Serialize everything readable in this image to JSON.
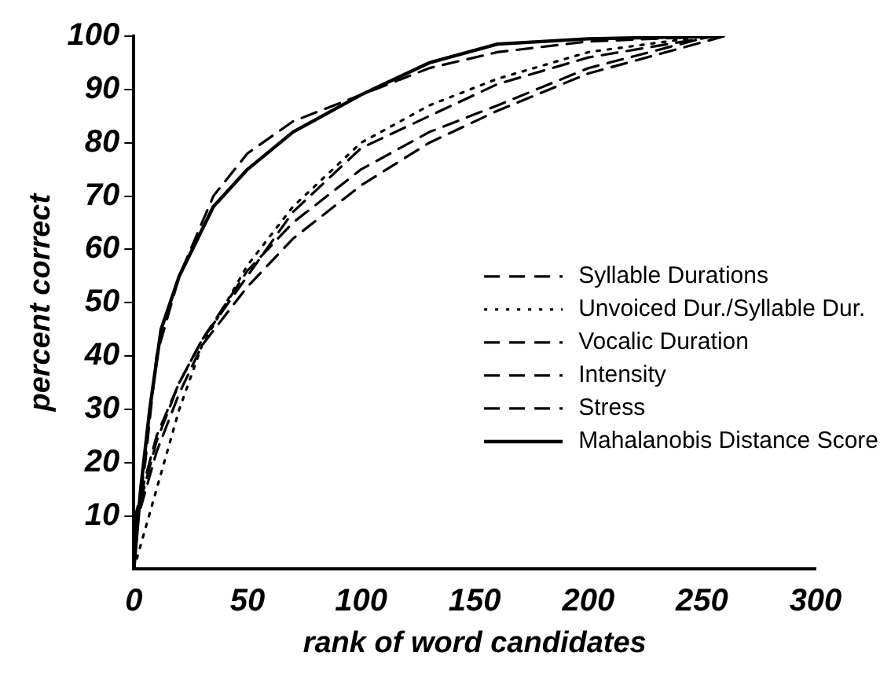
{
  "chart_data": {
    "type": "line",
    "xlabel": "rank of word candidates",
    "ylabel": "percent correct",
    "xlim": [
      0,
      300
    ],
    "xticks": [
      0,
      50,
      100,
      150,
      200,
      250,
      300
    ],
    "ylim": [
      0,
      100
    ],
    "yticks": [
      10,
      20,
      30,
      40,
      50,
      60,
      70,
      80,
      90,
      100
    ],
    "grid": false,
    "legend": "right",
    "marker": "none",
    "series": [
      {
        "name": "Syllable Durations",
        "color": "#000000",
        "line_style": "dashed",
        "x": [
          0,
          5,
          10,
          20,
          35,
          50,
          70,
          100,
          130,
          160,
          200,
          257
        ],
        "values": [
          5,
          20,
          40,
          55,
          70,
          78,
          84,
          89,
          94,
          97,
          99,
          100
        ]
      },
      {
        "name": "Unvoiced Dur./Syllable Dur.",
        "color": "#000000",
        "line_style": "dotted",
        "x": [
          0,
          10,
          20,
          30,
          50,
          70,
          100,
          130,
          160,
          200,
          252
        ],
        "values": [
          0,
          15,
          30,
          42,
          57,
          68,
          80,
          87,
          92,
          97,
          100
        ]
      },
      {
        "name": "Vocalic Duration",
        "color": "#000000",
        "line_style": "dashed",
        "x": [
          0,
          10,
          20,
          30,
          50,
          70,
          100,
          130,
          160,
          200,
          256
        ],
        "values": [
          9,
          25,
          35,
          43,
          55,
          67,
          79,
          85,
          91,
          96,
          100
        ]
      },
      {
        "name": "Intensity",
        "color": "#000000",
        "line_style": "dashed",
        "x": [
          0,
          10,
          20,
          30,
          50,
          70,
          100,
          130,
          160,
          200,
          260
        ],
        "values": [
          7,
          22,
          33,
          42,
          53,
          62,
          72,
          80,
          86,
          93,
          100
        ]
      },
      {
        "name": "Stress",
        "color": "#000000",
        "line_style": "dashed",
        "x": [
          0,
          10,
          20,
          30,
          50,
          70,
          100,
          130,
          160,
          200,
          254
        ],
        "values": [
          8,
          24,
          35,
          43,
          56,
          65,
          75,
          82,
          87,
          94,
          100
        ]
      },
      {
        "name": "Mahalanobis Distance Score",
        "color": "#000000",
        "line_style": "solid",
        "x": [
          0,
          3,
          7,
          12,
          20,
          35,
          50,
          70,
          100,
          130,
          160,
          200,
          258
        ],
        "values": [
          0,
          15,
          30,
          45,
          55,
          68,
          75,
          82,
          89,
          95,
          98.5,
          99.5,
          100
        ]
      }
    ]
  }
}
